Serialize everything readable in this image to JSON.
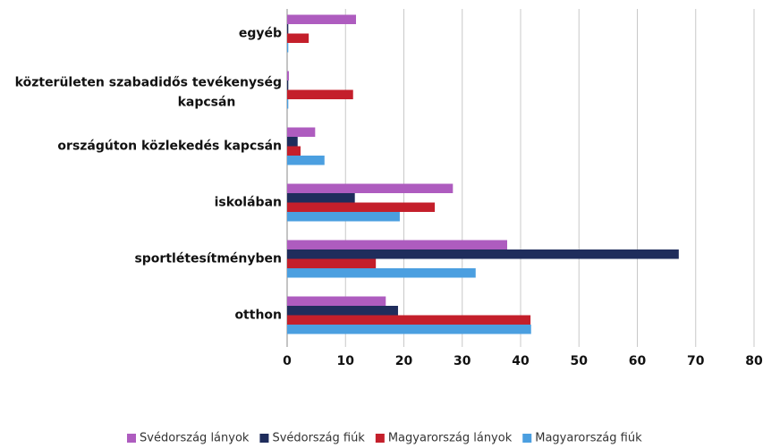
{
  "chart_data": {
    "type": "barh",
    "categories": [
      "egyéb",
      "közterületen szabadidős tevékenység kapcsán",
      "országúton közlekedés kapcsán",
      "iskolában",
      "sportlétesítményben",
      "otthon"
    ],
    "series": [
      {
        "name": "Svédország lányok",
        "color": "#ae5cbf",
        "values": [
          11.8,
          0.3,
          4.8,
          28.4,
          37.7,
          16.9
        ]
      },
      {
        "name": "Svédország fiúk",
        "color": "#1f2d5c",
        "values": [
          0.2,
          0.2,
          1.8,
          11.6,
          67.1,
          19.0
        ]
      },
      {
        "name": "Magyarország lányok",
        "color": "#c41f2b",
        "values": [
          3.7,
          11.3,
          2.3,
          25.3,
          15.2,
          41.7
        ]
      },
      {
        "name": "Magyarország fiúk",
        "color": "#4b9fe0",
        "values": [
          0.2,
          0.2,
          6.4,
          19.3,
          32.3,
          41.8
        ]
      }
    ],
    "xlim": [
      0,
      80
    ],
    "xticks": [
      0,
      10,
      20,
      30,
      40,
      50,
      60,
      70,
      80
    ],
    "grid": true,
    "legend": "bottom"
  }
}
